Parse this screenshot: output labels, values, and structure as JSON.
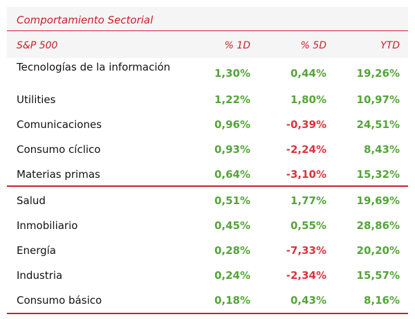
{
  "title": "Comportamiento Sectorial",
  "headers": {
    "index": "S&P 500",
    "d1": "% 1D",
    "d5": "% 5D",
    "ytd": "YTD"
  },
  "rows": [
    {
      "name": "Tecnologías de la información",
      "d1": "1,30%",
      "d5": "0,44%",
      "ytd": "19,26%"
    },
    {
      "name": "Utilities",
      "d1": "1,22%",
      "d5": "1,80%",
      "ytd": "10,97%"
    },
    {
      "name": "Comunicaciones",
      "d1": "0,96%",
      "d5": "-0,39%",
      "ytd": "24,51%"
    },
    {
      "name": "Consumo cíclico",
      "d1": "0,93%",
      "d5": "-2,24%",
      "ytd": "8,43%"
    },
    {
      "name": "Materias primas",
      "d1": "0,64%",
      "d5": "-3,10%",
      "ytd": "15,32%"
    },
    {
      "name": "Salud",
      "d1": "0,51%",
      "d5": "1,77%",
      "ytd": "19,69%"
    },
    {
      "name": "Inmobiliario",
      "d1": "0,45%",
      "d5": "0,55%",
      "ytd": "28,86%"
    },
    {
      "name": "Energía",
      "d1": "0,28%",
      "d5": "-7,33%",
      "ytd": "20,20%"
    },
    {
      "name": "Industria",
      "d1": "0,24%",
      "d5": "-2,34%",
      "ytd": "15,57%"
    },
    {
      "name": "Consumo básico",
      "d1": "0,18%",
      "d5": "0,43%",
      "ytd": "8,16%"
    }
  ],
  "colors": {
    "accent": "#c8202a",
    "positive": "#55a43a",
    "negative": "#d9353c"
  }
}
